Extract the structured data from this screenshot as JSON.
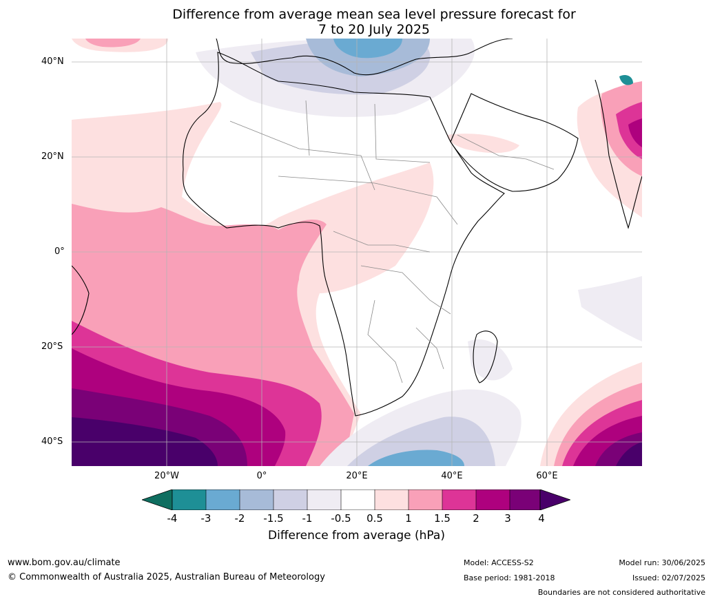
{
  "title_line1": "Difference from average mean sea level pressure forecast for",
  "title_line2": "7 to 20 July 2025",
  "map": {
    "projection": "plate-carree",
    "lon_range": [
      -40,
      80
    ],
    "lat_range": [
      -45,
      45
    ],
    "grid": true,
    "lat_labels": [
      "40°N",
      "20°N",
      "0°",
      "20°S",
      "40°S"
    ],
    "lon_labels": [
      "20°W",
      "0°",
      "20°E",
      "40°E",
      "60°E"
    ]
  },
  "colorbar": {
    "ticks": [
      "-4",
      "-3",
      "-2",
      "-1.5",
      "-1",
      "-0.5",
      "0.5",
      "1",
      "1.5",
      "2",
      "3",
      "4"
    ],
    "colors": {
      "below_min": "#0f6e60",
      "c1": "#1e8f96",
      "c2": "#6aaad2",
      "c3": "#a7bbd8",
      "c4": "#cfd0e4",
      "c5": "#efecf3",
      "c6": "#ffffff",
      "c7": "#fde0e0",
      "c8": "#f9a0b8",
      "c9": "#dd3497",
      "c10": "#ae017e",
      "c11": "#7a0177",
      "above_max": "#49006a"
    },
    "label": "Difference from average (hPa)"
  },
  "footer": {
    "url": "www.bom.gov.au/climate",
    "copyright": "© Commonwealth of Australia 2025, Australian Bureau of Meteorology",
    "model": "Model: ACCESS-S2",
    "base_period": "Base period: 1981-2018",
    "model_run": "Model run: 30/06/2025",
    "issued": "Issued: 02/07/2025",
    "disclaimer": "Boundaries are not considered authoritative"
  }
}
